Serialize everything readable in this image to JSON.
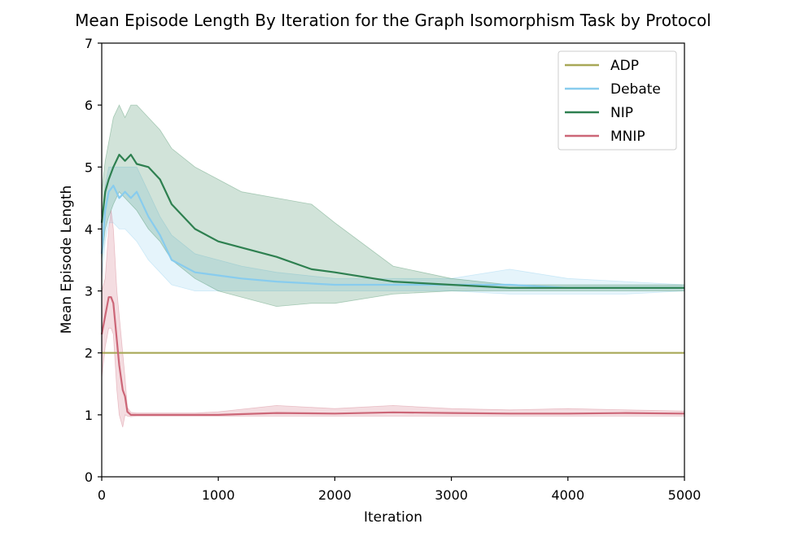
{
  "chart_data": {
    "type": "line",
    "title": "Mean Episode Length By Iteration for the Graph Isomorphism Task by Protocol",
    "xlabel": "Iteration",
    "ylabel": "Mean Episode Length",
    "xlim": [
      0,
      5000
    ],
    "ylim": [
      0,
      7
    ],
    "xticks": [
      "0",
      "1000",
      "2000",
      "3000",
      "4000",
      "5000"
    ],
    "yticks": [
      "0",
      "1",
      "2",
      "3",
      "4",
      "5",
      "6",
      "7"
    ],
    "grid": false,
    "legend_position": "top-right",
    "series": [
      {
        "name": "ADP",
        "color": "#a8a857",
        "x": [
          0,
          5000
        ],
        "y": [
          2.0,
          2.0
        ],
        "lower": null,
        "upper": null
      },
      {
        "name": "Debate",
        "color": "#88ccee",
        "x": [
          0,
          30,
          60,
          100,
          150,
          200,
          250,
          300,
          400,
          500,
          600,
          800,
          1000,
          1200,
          1500,
          2000,
          2500,
          3000,
          3500,
          4000,
          4500,
          5000
        ],
        "y": [
          3.6,
          4.3,
          4.6,
          4.7,
          4.5,
          4.6,
          4.5,
          4.6,
          4.2,
          3.9,
          3.5,
          3.3,
          3.25,
          3.2,
          3.15,
          3.1,
          3.1,
          3.1,
          3.1,
          3.05,
          3.05,
          3.05
        ],
        "lower": [
          3.2,
          3.8,
          4.1,
          4.1,
          4.0,
          4.0,
          3.9,
          3.8,
          3.5,
          3.3,
          3.1,
          3.0,
          3.0,
          3.0,
          3.0,
          3.0,
          3.0,
          3.0,
          2.95,
          2.95,
          2.95,
          3.0
        ],
        "upper": [
          4.0,
          4.7,
          5.0,
          5.0,
          5.0,
          5.0,
          5.0,
          5.0,
          4.6,
          4.2,
          3.9,
          3.6,
          3.5,
          3.4,
          3.3,
          3.2,
          3.2,
          3.2,
          3.35,
          3.2,
          3.15,
          3.1
        ]
      },
      {
        "name": "NIP",
        "color": "#2e8050",
        "x": [
          0,
          30,
          60,
          100,
          150,
          200,
          250,
          300,
          400,
          500,
          600,
          800,
          1000,
          1200,
          1500,
          1800,
          2000,
          2500,
          3000,
          3500,
          4000,
          4500,
          5000
        ],
        "y": [
          4.1,
          4.6,
          4.8,
          5.0,
          5.2,
          5.1,
          5.2,
          5.05,
          5.0,
          4.8,
          4.4,
          4.0,
          3.8,
          3.7,
          3.55,
          3.35,
          3.3,
          3.15,
          3.1,
          3.05,
          3.05,
          3.05,
          3.05
        ],
        "lower": [
          3.5,
          4.0,
          4.2,
          4.4,
          4.6,
          4.5,
          4.4,
          4.3,
          4.0,
          3.8,
          3.5,
          3.2,
          3.0,
          2.9,
          2.75,
          2.8,
          2.8,
          2.95,
          3.0,
          3.0,
          3.0,
          3.0,
          3.0
        ],
        "upper": [
          4.6,
          5.1,
          5.4,
          5.8,
          6.0,
          5.8,
          6.0,
          6.0,
          5.8,
          5.6,
          5.3,
          5.0,
          4.8,
          4.6,
          4.5,
          4.4,
          4.1,
          3.4,
          3.2,
          3.1,
          3.1,
          3.1,
          3.1
        ]
      },
      {
        "name": "MNIP",
        "color": "#cc6677",
        "x": [
          0,
          30,
          60,
          80,
          100,
          130,
          150,
          180,
          200,
          220,
          250,
          300,
          400,
          600,
          800,
          1000,
          1500,
          2000,
          2500,
          3000,
          3500,
          4000,
          4500,
          5000
        ],
        "y": [
          2.3,
          2.6,
          2.9,
          2.9,
          2.8,
          2.2,
          1.8,
          1.4,
          1.3,
          1.05,
          1.0,
          1.0,
          1.0,
          1.0,
          1.0,
          1.0,
          1.03,
          1.02,
          1.04,
          1.03,
          1.02,
          1.02,
          1.03,
          1.02
        ],
        "lower": [
          1.6,
          2.1,
          2.4,
          2.4,
          2.3,
          1.4,
          1.0,
          0.8,
          1.0,
          0.98,
          0.97,
          0.98,
          0.98,
          0.98,
          0.98,
          0.98,
          0.98,
          0.98,
          0.98,
          0.98,
          0.98,
          0.98,
          0.98,
          0.98
        ],
        "upper": [
          3.0,
          3.2,
          4.0,
          4.3,
          4.0,
          3.0,
          2.6,
          2.0,
          1.6,
          1.12,
          1.04,
          1.03,
          1.03,
          1.03,
          1.03,
          1.05,
          1.15,
          1.1,
          1.15,
          1.1,
          1.08,
          1.1,
          1.08,
          1.06
        ]
      }
    ]
  }
}
